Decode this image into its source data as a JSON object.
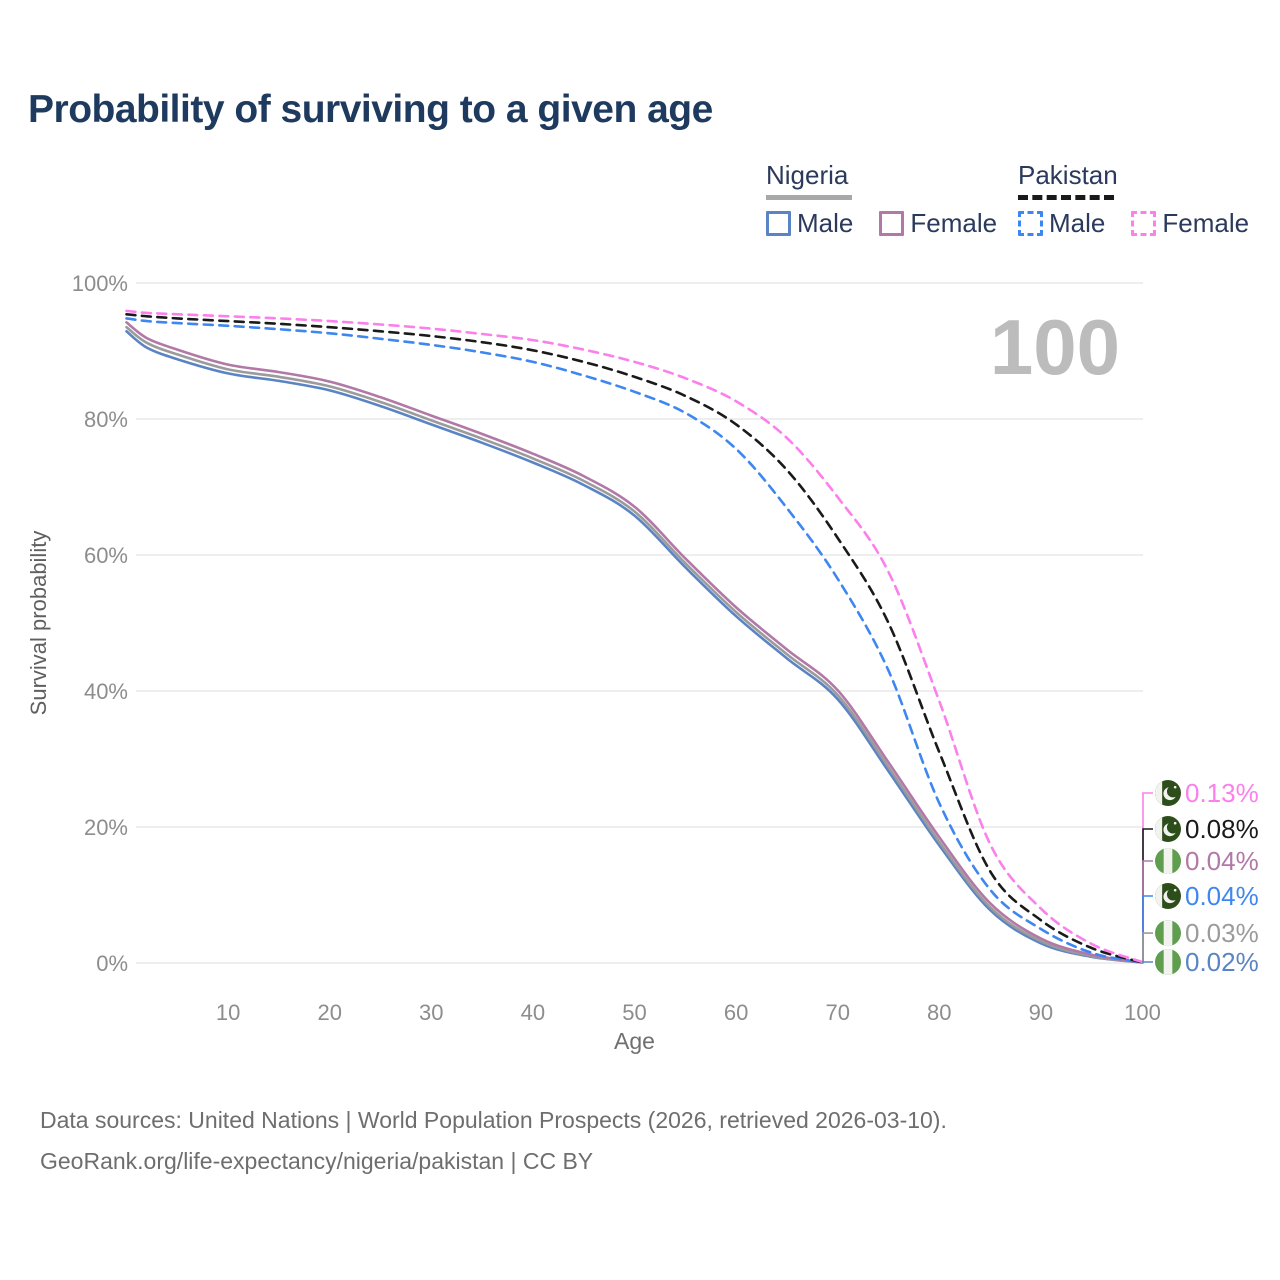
{
  "title": "Probability of surviving to a given age",
  "watermark": "100",
  "legend": {
    "groups": [
      {
        "id": "nigeria",
        "label": "Nigeria",
        "line": "solid",
        "color": "#a8a8a8",
        "items": [
          {
            "id": "nigeria-male",
            "label": "Male",
            "color": "#5b84c4"
          },
          {
            "id": "nigeria-female",
            "label": "Female",
            "color": "#b279a7"
          }
        ]
      },
      {
        "id": "pakistan",
        "label": "Pakistan",
        "line": "dashed",
        "color": "#1a1a1a",
        "items": [
          {
            "id": "pakistan-male",
            "label": "Male",
            "color": "#3f87f0"
          },
          {
            "id": "pakistan-female",
            "label": "Female",
            "color": "#fb80ec"
          }
        ]
      }
    ]
  },
  "chart_data": {
    "type": "line",
    "title": "Probability of surviving to a given age",
    "xlabel": "Age",
    "ylabel": "Survival probability",
    "xlim": [
      0,
      100
    ],
    "ylim": [
      0,
      100
    ],
    "grid": "horizontal",
    "x_ticks": [
      10,
      20,
      30,
      40,
      50,
      60,
      70,
      80,
      90,
      100
    ],
    "y_ticks": [
      {
        "value": 0,
        "label": "0%"
      },
      {
        "value": 20,
        "label": "20%"
      },
      {
        "value": 40,
        "label": "40%"
      },
      {
        "value": 60,
        "label": "60%"
      },
      {
        "value": 80,
        "label": "80%"
      },
      {
        "value": 100,
        "label": "100%"
      }
    ],
    "series": [
      {
        "id": "nigeria-male",
        "name": "Nigeria Male",
        "country": "Nigeria",
        "sex": "Male",
        "color": "#5b84c4",
        "dash": false,
        "points": [
          [
            0,
            92.9
          ],
          [
            2,
            90.5
          ],
          [
            5,
            88.8
          ],
          [
            10,
            86.7
          ],
          [
            15,
            85.6
          ],
          [
            20,
            84.2
          ],
          [
            25,
            81.9
          ],
          [
            30,
            79.2
          ],
          [
            35,
            76.5
          ],
          [
            40,
            73.6
          ],
          [
            45,
            70.3
          ],
          [
            50,
            65.8
          ],
          [
            55,
            58.2
          ],
          [
            60,
            51.0
          ],
          [
            65,
            44.8
          ],
          [
            70,
            38.8
          ],
          [
            75,
            28.2
          ],
          [
            80,
            17.3
          ],
          [
            85,
            7.8
          ],
          [
            90,
            2.9
          ],
          [
            95,
            0.9
          ],
          [
            100,
            0.02
          ]
        ]
      },
      {
        "id": "nigeria",
        "name": "Nigeria (both sexes)",
        "country": "Nigeria",
        "sex": "All",
        "color": "#9b9b9b",
        "dash": false,
        "points": [
          [
            0,
            93.5
          ],
          [
            2,
            91.2
          ],
          [
            5,
            89.5
          ],
          [
            10,
            87.3
          ],
          [
            15,
            86.2
          ],
          [
            20,
            84.8
          ],
          [
            25,
            82.5
          ],
          [
            30,
            79.8
          ],
          [
            35,
            77.1
          ],
          [
            40,
            74.2
          ],
          [
            45,
            70.9
          ],
          [
            50,
            66.4
          ],
          [
            55,
            58.8
          ],
          [
            60,
            51.6
          ],
          [
            65,
            45.4
          ],
          [
            70,
            39.4
          ],
          [
            75,
            28.8
          ],
          [
            80,
            17.8
          ],
          [
            85,
            8.2
          ],
          [
            90,
            3.2
          ],
          [
            95,
            1.0
          ],
          [
            100,
            0.03
          ]
        ]
      },
      {
        "id": "nigeria-female",
        "name": "Nigeria Female",
        "country": "Nigeria",
        "sex": "Female",
        "color": "#b279a7",
        "dash": false,
        "points": [
          [
            0,
            94.2
          ],
          [
            2,
            91.9
          ],
          [
            5,
            90.2
          ],
          [
            10,
            88.0
          ],
          [
            15,
            86.9
          ],
          [
            20,
            85.5
          ],
          [
            25,
            83.2
          ],
          [
            30,
            80.5
          ],
          [
            35,
            77.8
          ],
          [
            40,
            74.9
          ],
          [
            45,
            71.6
          ],
          [
            50,
            67.1
          ],
          [
            55,
            59.5
          ],
          [
            60,
            52.3
          ],
          [
            65,
            46.1
          ],
          [
            70,
            40.1
          ],
          [
            75,
            29.5
          ],
          [
            80,
            18.5
          ],
          [
            85,
            8.8
          ],
          [
            90,
            3.6
          ],
          [
            95,
            1.2
          ],
          [
            100,
            0.04
          ]
        ]
      },
      {
        "id": "pakistan-male",
        "name": "Pakistan Male",
        "country": "Pakistan",
        "sex": "Male",
        "color": "#3f87f0",
        "dash": true,
        "points": [
          [
            0,
            94.8
          ],
          [
            2,
            94.4
          ],
          [
            5,
            94.1
          ],
          [
            10,
            93.7
          ],
          [
            15,
            93.2
          ],
          [
            20,
            92.6
          ],
          [
            25,
            91.8
          ],
          [
            30,
            90.9
          ],
          [
            35,
            89.8
          ],
          [
            40,
            88.4
          ],
          [
            45,
            86.4
          ],
          [
            50,
            84.0
          ],
          [
            55,
            80.9
          ],
          [
            60,
            75.6
          ],
          [
            65,
            66.9
          ],
          [
            70,
            56.5
          ],
          [
            75,
            43.0
          ],
          [
            80,
            23.5
          ],
          [
            85,
            10.8
          ],
          [
            90,
            5.0
          ],
          [
            95,
            1.5
          ],
          [
            100,
            0.04
          ]
        ]
      },
      {
        "id": "pakistan",
        "name": "Pakistan (both sexes)",
        "country": "Pakistan",
        "sex": "All",
        "color": "#1a1a1a",
        "dash": true,
        "points": [
          [
            0,
            95.4
          ],
          [
            2,
            95.1
          ],
          [
            5,
            94.8
          ],
          [
            10,
            94.4
          ],
          [
            15,
            94.0
          ],
          [
            20,
            93.5
          ],
          [
            25,
            92.9
          ],
          [
            30,
            92.2
          ],
          [
            35,
            91.3
          ],
          [
            40,
            90.1
          ],
          [
            45,
            88.4
          ],
          [
            50,
            86.2
          ],
          [
            55,
            83.4
          ],
          [
            60,
            79.2
          ],
          [
            65,
            72.5
          ],
          [
            70,
            62.5
          ],
          [
            75,
            50.0
          ],
          [
            80,
            31.0
          ],
          [
            85,
            13.5
          ],
          [
            90,
            6.3
          ],
          [
            95,
            2.2
          ],
          [
            100,
            0.08
          ]
        ]
      },
      {
        "id": "pakistan-female",
        "name": "Pakistan Female",
        "country": "Pakistan",
        "sex": "Female",
        "color": "#fb80ec",
        "dash": true,
        "points": [
          [
            0,
            95.9
          ],
          [
            2,
            95.6
          ],
          [
            5,
            95.4
          ],
          [
            10,
            95.1
          ],
          [
            15,
            94.8
          ],
          [
            20,
            94.4
          ],
          [
            25,
            93.9
          ],
          [
            30,
            93.3
          ],
          [
            35,
            92.5
          ],
          [
            40,
            91.6
          ],
          [
            45,
            90.2
          ],
          [
            50,
            88.4
          ],
          [
            55,
            86.0
          ],
          [
            60,
            82.6
          ],
          [
            65,
            77.2
          ],
          [
            70,
            68.5
          ],
          [
            75,
            57.5
          ],
          [
            80,
            38.5
          ],
          [
            85,
            17.5
          ],
          [
            90,
            8.0
          ],
          [
            95,
            2.8
          ],
          [
            100,
            0.13
          ]
        ]
      }
    ],
    "end_labels": [
      {
        "series_id": "pakistan-female",
        "flag": "pakistan",
        "text": "0.13%",
        "value_pct": 0.13,
        "label_pos_pct": 25.0,
        "color": "#fb80ec"
      },
      {
        "series_id": "pakistan",
        "flag": "pakistan",
        "text": "0.08%",
        "value_pct": 0.08,
        "label_pos_pct": 19.7,
        "color": "#1a1a1a"
      },
      {
        "series_id": "nigeria-female",
        "flag": "nigeria",
        "text": "0.04%",
        "value_pct": 0.04,
        "label_pos_pct": 15.0,
        "color": "#b279a7"
      },
      {
        "series_id": "pakistan-male",
        "flag": "pakistan",
        "text": "0.04%",
        "value_pct": 0.04,
        "label_pos_pct": 9.85,
        "color": "#3f87f0"
      },
      {
        "series_id": "nigeria",
        "flag": "nigeria",
        "text": "0.03%",
        "value_pct": 0.03,
        "label_pos_pct": 4.4,
        "color": "#9b9b9b"
      },
      {
        "series_id": "nigeria-male",
        "flag": "nigeria",
        "text": "0.02%",
        "value_pct": 0.02,
        "label_pos_pct": 0.15,
        "color": "#5b84c4"
      }
    ],
    "flag_colors": {
      "pakistan_green": "#2d4e1b",
      "nigeria_green": "#5f9e4e",
      "flag_white": "#f2f2ee"
    }
  },
  "footer": {
    "line1": "Data sources: United Nations | World Population Prospects (2026, retrieved 2026-03-10).",
    "line2": "GeoRank.org/life-expectancy/nigeria/pakistan | CC BY"
  }
}
